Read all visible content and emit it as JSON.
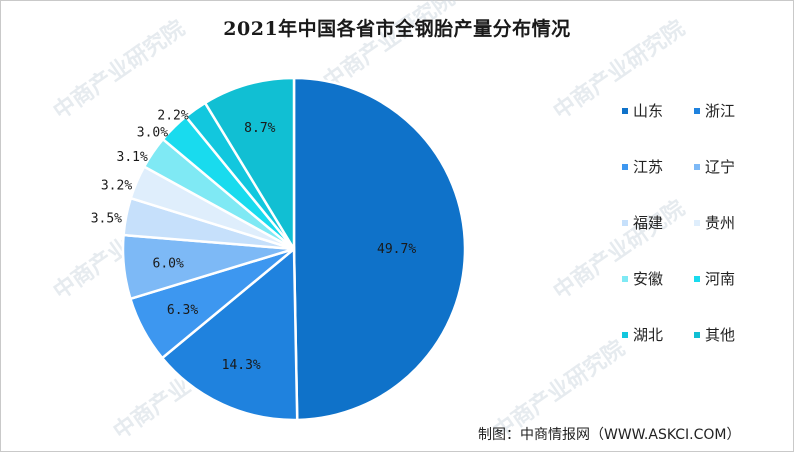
{
  "title": "2021年中国各省市全钢胎产量分布情况",
  "source": "制图：中商情报网（WWW.ASKCI.COM）",
  "watermark": "中商产业研究院",
  "chart_data": {
    "type": "pie",
    "title": "2021年中国各省市全钢胎产量分布情况",
    "start": "12 o'clock",
    "direction": "clockwise",
    "slices": [
      {
        "label": "山东",
        "value": 49.7,
        "display": "49.7%",
        "color": "#0f72c9"
      },
      {
        "label": "浙江",
        "value": 14.3,
        "display": "14.3%",
        "color": "#1f82de"
      },
      {
        "label": "江苏",
        "value": 6.3,
        "display": "6.3%",
        "color": "#3d97f0"
      },
      {
        "label": "辽宁",
        "value": 6.0,
        "display": "6.0%",
        "color": "#7db9f6"
      },
      {
        "label": "福建",
        "value": 3.5,
        "display": "3.5%",
        "color": "#c6e0fb"
      },
      {
        "label": "贵州",
        "value": 3.2,
        "display": "3.2%",
        "color": "#dfeefc"
      },
      {
        "label": "安徽",
        "value": 3.1,
        "display": "3.1%",
        "color": "#7fe9f4"
      },
      {
        "label": "河南",
        "value": 3.0,
        "display": "3.0%",
        "color": "#19dbee"
      },
      {
        "label": "湖北",
        "value": 2.2,
        "display": "2.2%",
        "color": "#12c7de"
      },
      {
        "label": "其他",
        "value": 8.7,
        "display": "8.7%",
        "color": "#11bfd3"
      }
    ],
    "legend_position": "right"
  }
}
